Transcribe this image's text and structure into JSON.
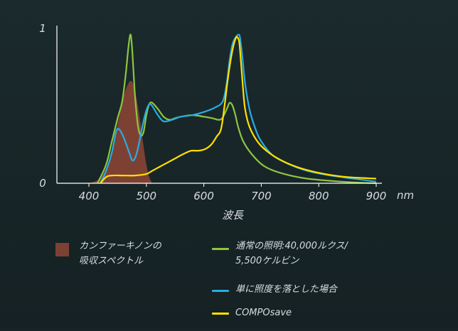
{
  "chart_data": {
    "type": "line",
    "xlabel": "波長",
    "x_unit": "nm",
    "ylim": [
      0,
      1
    ],
    "xlim": [
      340,
      905
    ],
    "x_ticks": [
      400,
      500,
      600,
      700,
      800,
      900
    ],
    "y_ticks": [
      0,
      1
    ],
    "grid": false,
    "legend_placement": "bottom",
    "series": [
      {
        "name": "カンファーキノンの\n吸収スペクトル",
        "style": "area",
        "color": "#7d4133",
        "points": [
          [
            400,
            0
          ],
          [
            415,
            0.02
          ],
          [
            425,
            0.06
          ],
          [
            435,
            0.15
          ],
          [
            445,
            0.3
          ],
          [
            455,
            0.47
          ],
          [
            462,
            0.58
          ],
          [
            468,
            0.64
          ],
          [
            472,
            0.66
          ],
          [
            476,
            0.65
          ],
          [
            480,
            0.6
          ],
          [
            485,
            0.5
          ],
          [
            490,
            0.38
          ],
          [
            495,
            0.24
          ],
          [
            500,
            0.12
          ],
          [
            505,
            0.04
          ],
          [
            510,
            0
          ]
        ]
      },
      {
        "name": "通常の照明:40,000ルクス/\n5,500ケルビン",
        "style": "line",
        "color": "#8dc63f",
        "points": [
          [
            415,
            0
          ],
          [
            430,
            0.12
          ],
          [
            440,
            0.27
          ],
          [
            450,
            0.42
          ],
          [
            458,
            0.53
          ],
          [
            464,
            0.7
          ],
          [
            468,
            0.85
          ],
          [
            472,
            0.96
          ],
          [
            475,
            0.88
          ],
          [
            480,
            0.58
          ],
          [
            485,
            0.38
          ],
          [
            490,
            0.31
          ],
          [
            495,
            0.33
          ],
          [
            500,
            0.44
          ],
          [
            505,
            0.51
          ],
          [
            510,
            0.52
          ],
          [
            520,
            0.48
          ],
          [
            530,
            0.43
          ],
          [
            540,
            0.41
          ],
          [
            550,
            0.42
          ],
          [
            560,
            0.43
          ],
          [
            580,
            0.44
          ],
          [
            600,
            0.43
          ],
          [
            615,
            0.42
          ],
          [
            625,
            0.41
          ],
          [
            632,
            0.42
          ],
          [
            640,
            0.48
          ],
          [
            645,
            0.52
          ],
          [
            650,
            0.5
          ],
          [
            655,
            0.44
          ],
          [
            660,
            0.36
          ],
          [
            670,
            0.26
          ],
          [
            690,
            0.16
          ],
          [
            710,
            0.1
          ],
          [
            740,
            0.06
          ],
          [
            780,
            0.03
          ],
          [
            840,
            0.01
          ],
          [
            900,
            0
          ]
        ]
      },
      {
        "name": "単に照度を落とした場合",
        "style": "line",
        "color": "#29abe2",
        "points": [
          [
            420,
            0
          ],
          [
            430,
            0.08
          ],
          [
            440,
            0.2
          ],
          [
            447,
            0.33
          ],
          [
            452,
            0.35
          ],
          [
            460,
            0.3
          ],
          [
            470,
            0.2
          ],
          [
            475,
            0.15
          ],
          [
            480,
            0.16
          ],
          [
            485,
            0.22
          ],
          [
            490,
            0.31
          ],
          [
            495,
            0.4
          ],
          [
            500,
            0.47
          ],
          [
            505,
            0.51
          ],
          [
            510,
            0.5
          ],
          [
            520,
            0.44
          ],
          [
            530,
            0.4
          ],
          [
            545,
            0.41
          ],
          [
            560,
            0.43
          ],
          [
            580,
            0.44
          ],
          [
            600,
            0.46
          ],
          [
            620,
            0.49
          ],
          [
            633,
            0.53
          ],
          [
            640,
            0.65
          ],
          [
            645,
            0.8
          ],
          [
            650,
            0.9
          ],
          [
            655,
            0.94
          ],
          [
            660,
            0.96
          ],
          [
            663,
            0.94
          ],
          [
            667,
            0.82
          ],
          [
            672,
            0.64
          ],
          [
            680,
            0.47
          ],
          [
            690,
            0.35
          ],
          [
            700,
            0.27
          ],
          [
            720,
            0.18
          ],
          [
            750,
            0.12
          ],
          [
            780,
            0.08
          ],
          [
            820,
            0.05
          ],
          [
            860,
            0.03
          ],
          [
            900,
            0.01
          ]
        ]
      },
      {
        "name": "COMPOsave",
        "style": "line",
        "color": "#ffe000",
        "points": [
          [
            420,
            0
          ],
          [
            430,
            0.04
          ],
          [
            440,
            0.05
          ],
          [
            460,
            0.05
          ],
          [
            480,
            0.05
          ],
          [
            500,
            0.06
          ],
          [
            510,
            0.08
          ],
          [
            520,
            0.1
          ],
          [
            535,
            0.13
          ],
          [
            550,
            0.16
          ],
          [
            565,
            0.19
          ],
          [
            578,
            0.21
          ],
          [
            590,
            0.21
          ],
          [
            602,
            0.22
          ],
          [
            613,
            0.25
          ],
          [
            622,
            0.3
          ],
          [
            630,
            0.35
          ],
          [
            636,
            0.5
          ],
          [
            641,
            0.65
          ],
          [
            646,
            0.78
          ],
          [
            651,
            0.88
          ],
          [
            656,
            0.94
          ],
          [
            659,
            0.94
          ],
          [
            662,
            0.9
          ],
          [
            666,
            0.72
          ],
          [
            671,
            0.5
          ],
          [
            678,
            0.38
          ],
          [
            688,
            0.3
          ],
          [
            700,
            0.24
          ],
          [
            720,
            0.18
          ],
          [
            745,
            0.13
          ],
          [
            775,
            0.09
          ],
          [
            810,
            0.06
          ],
          [
            850,
            0.04
          ],
          [
            900,
            0.03
          ]
        ]
      }
    ]
  },
  "legend": [
    {
      "label": "カンファーキノンの\n吸収スペクトル"
    },
    {
      "label": "通常の照明:40,000ルクス/\n5,500ケルビン"
    },
    {
      "label": "単に照度を落とした場合"
    },
    {
      "label": "COMPOsave"
    }
  ]
}
